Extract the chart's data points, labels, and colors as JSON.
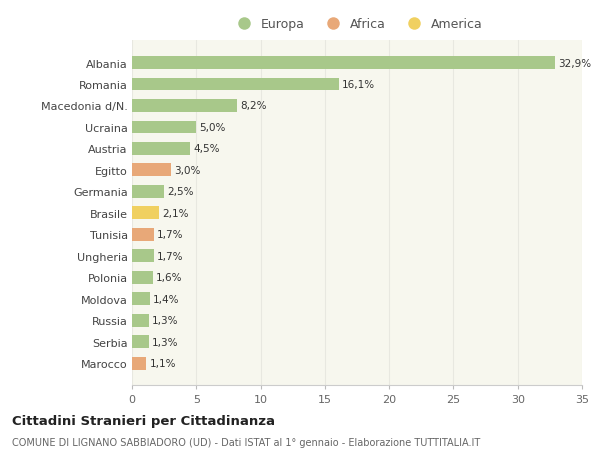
{
  "countries": [
    "Albania",
    "Romania",
    "Macedonia d/N.",
    "Ucraina",
    "Austria",
    "Egitto",
    "Germania",
    "Brasile",
    "Tunisia",
    "Ungheria",
    "Polonia",
    "Moldova",
    "Russia",
    "Serbia",
    "Marocco"
  ],
  "values": [
    32.9,
    16.1,
    8.2,
    5.0,
    4.5,
    3.0,
    2.5,
    2.1,
    1.7,
    1.7,
    1.6,
    1.4,
    1.3,
    1.3,
    1.1
  ],
  "labels": [
    "32,9%",
    "16,1%",
    "8,2%",
    "5,0%",
    "4,5%",
    "3,0%",
    "2,5%",
    "2,1%",
    "1,7%",
    "1,7%",
    "1,6%",
    "1,4%",
    "1,3%",
    "1,3%",
    "1,1%"
  ],
  "continents": [
    "Europa",
    "Europa",
    "Europa",
    "Europa",
    "Europa",
    "Africa",
    "Europa",
    "America",
    "Africa",
    "Europa",
    "Europa",
    "Europa",
    "Europa",
    "Europa",
    "Africa"
  ],
  "colors": {
    "Europa": "#a8c88a",
    "Africa": "#e8a878",
    "America": "#f0d060"
  },
  "bg_color": "#ffffff",
  "plot_bg_color": "#f7f7ee",
  "grid_color": "#e8e8e0",
  "title": "Cittadini Stranieri per Cittadinanza",
  "subtitle": "COMUNE DI LIGNANO SABBIADORO (UD) - Dati ISTAT al 1° gennaio - Elaborazione TUTTITALIA.IT",
  "xlim": [
    0,
    35
  ],
  "xticks": [
    0,
    5,
    10,
    15,
    20,
    25,
    30,
    35
  ]
}
